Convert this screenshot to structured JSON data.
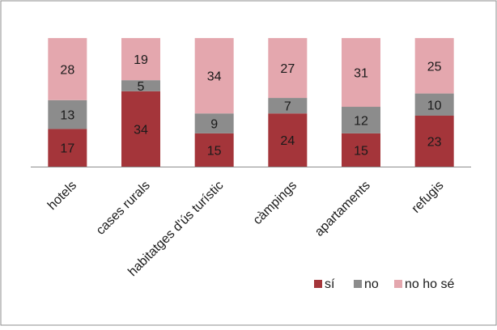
{
  "chart_data": {
    "type": "bar",
    "stacked": true,
    "categories": [
      "hotels",
      "cases rurals",
      "habitatges d'ús turístic",
      "càmpings",
      "apartaments",
      "refugis"
    ],
    "series": [
      {
        "name": "sí",
        "values": [
          17,
          34,
          15,
          24,
          15,
          23
        ],
        "color": "#A4353A"
      },
      {
        "name": "no",
        "values": [
          13,
          5,
          9,
          7,
          12,
          10
        ],
        "color": "#8C8C8C"
      },
      {
        "name": "no ho sé",
        "values": [
          28,
          19,
          34,
          27,
          31,
          25
        ],
        "color": "#E4A7AE"
      }
    ],
    "title": "",
    "xlabel": "",
    "ylabel": "",
    "ylim": [
      0,
      58
    ],
    "grid": false,
    "legend": "bottom-right",
    "data_labels": true
  }
}
